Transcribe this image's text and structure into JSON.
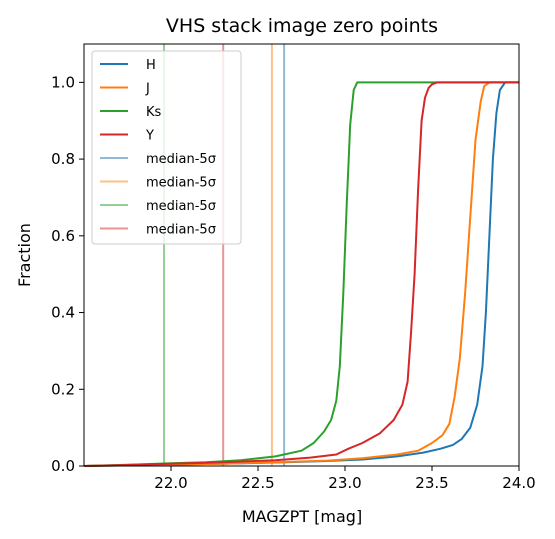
{
  "chart_data": {
    "type": "line",
    "title": "VHS stack image zero points",
    "xlabel": "MAGZPT [mag]",
    "ylabel": "Fraction",
    "xlim": [
      21.5,
      24.0
    ],
    "ylim": [
      0.0,
      1.1
    ],
    "xticks": [
      22.0,
      22.5,
      23.0,
      23.5,
      24.0
    ],
    "xtick_labels": [
      "22.0",
      "22.5",
      "23.0",
      "23.5",
      "24.0"
    ],
    "yticks": [
      0.0,
      0.2,
      0.4,
      0.6,
      0.8,
      1.0
    ],
    "ytick_labels": [
      "0.0",
      "0.2",
      "0.4",
      "0.6",
      "0.8",
      "1.0"
    ],
    "grid": false,
    "legend_placement": "upper-left",
    "series": [
      {
        "name": "H",
        "color": "#1f77b4",
        "x": [
          21.5,
          21.8,
          22.0,
          22.3,
          22.6,
          22.9,
          23.1,
          23.3,
          23.45,
          23.55,
          23.62,
          23.67,
          23.72,
          23.76,
          23.79,
          23.81,
          23.83,
          23.85,
          23.87,
          23.89,
          23.92,
          23.95,
          24.0
        ],
        "y": [
          0.0,
          0.002,
          0.004,
          0.006,
          0.009,
          0.013,
          0.017,
          0.025,
          0.035,
          0.045,
          0.055,
          0.07,
          0.1,
          0.16,
          0.26,
          0.4,
          0.6,
          0.8,
          0.92,
          0.98,
          1.0,
          1.0,
          1.0
        ]
      },
      {
        "name": "J",
        "color": "#ff7f0e",
        "x": [
          21.5,
          21.8,
          22.0,
          22.3,
          22.6,
          22.9,
          23.1,
          23.3,
          23.42,
          23.5,
          23.56,
          23.6,
          23.63,
          23.66,
          23.69,
          23.72,
          23.75,
          23.78,
          23.8,
          23.83,
          23.87,
          24.0
        ],
        "y": [
          0.0,
          0.002,
          0.004,
          0.006,
          0.01,
          0.014,
          0.02,
          0.03,
          0.04,
          0.06,
          0.08,
          0.11,
          0.18,
          0.28,
          0.45,
          0.65,
          0.85,
          0.95,
          0.99,
          1.0,
          1.0,
          1.0
        ]
      },
      {
        "name": "Ks",
        "color": "#2ca02c",
        "x": [
          21.5,
          21.8,
          22.0,
          22.2,
          22.4,
          22.6,
          22.75,
          22.82,
          22.88,
          22.92,
          22.95,
          22.97,
          22.99,
          23.01,
          23.03,
          23.05,
          23.07,
          23.1,
          23.15,
          23.3,
          23.6,
          24.0
        ],
        "y": [
          0.0,
          0.004,
          0.007,
          0.01,
          0.015,
          0.025,
          0.04,
          0.06,
          0.09,
          0.12,
          0.17,
          0.26,
          0.45,
          0.68,
          0.89,
          0.98,
          1.0,
          1.0,
          1.0,
          1.0,
          1.0,
          1.0
        ]
      },
      {
        "name": "Y",
        "color": "#d62728",
        "x": [
          21.5,
          21.8,
          22.0,
          22.3,
          22.6,
          22.8,
          22.95,
          23.02,
          23.1,
          23.2,
          23.28,
          23.33,
          23.36,
          23.38,
          23.4,
          23.42,
          23.44,
          23.46,
          23.48,
          23.5,
          23.53,
          23.6,
          23.8,
          24.0
        ],
        "y": [
          0.0,
          0.003,
          0.006,
          0.01,
          0.015,
          0.022,
          0.03,
          0.045,
          0.06,
          0.085,
          0.12,
          0.16,
          0.22,
          0.35,
          0.5,
          0.72,
          0.9,
          0.96,
          0.985,
          0.995,
          1.0,
          1.0,
          1.0,
          1.0
        ]
      }
    ],
    "vertical_lines": [
      {
        "name": "median-5σ",
        "x": 22.65,
        "color": "#1f77b4"
      },
      {
        "name": "median-5σ",
        "x": 22.58,
        "color": "#ff7f0e"
      },
      {
        "name": "median-5σ",
        "x": 21.96,
        "color": "#2ca02c"
      },
      {
        "name": "median-5σ",
        "x": 22.3,
        "color": "#d62728"
      }
    ]
  }
}
